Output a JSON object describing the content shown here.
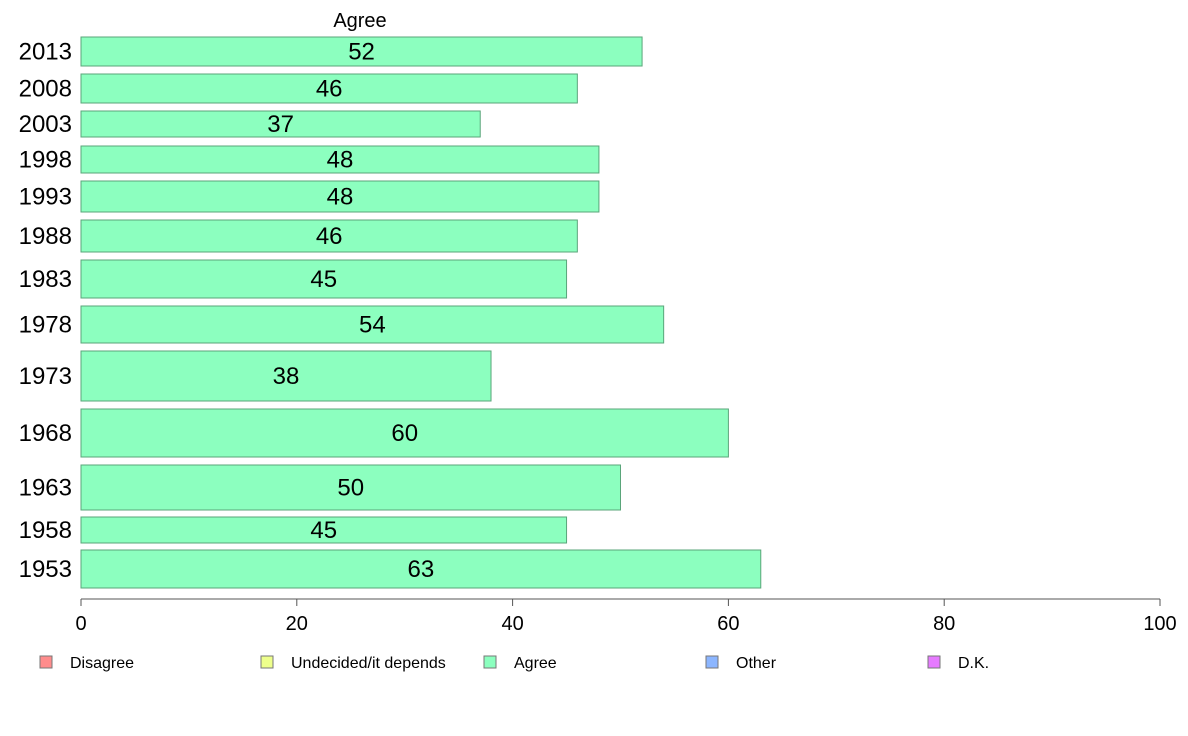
{
  "chart_data": {
    "type": "bar",
    "orientation": "horizontal",
    "title": "Agree",
    "categories": [
      "2013",
      "2008",
      "2003",
      "1998",
      "1993",
      "1988",
      "1983",
      "1978",
      "1973",
      "1968",
      "1963",
      "1958",
      "1953"
    ],
    "series": [
      {
        "name": "Agree",
        "color": "#8cffbf",
        "values": [
          52,
          46,
          37,
          48,
          48,
          46,
          45,
          54,
          38,
          60,
          50,
          45,
          63
        ]
      }
    ],
    "value_labels": [
      "52",
      "46",
      "37",
      "48",
      "48",
      "46",
      "45",
      "54",
      "38",
      "60",
      "50",
      "45",
      "63"
    ],
    "xlim": [
      0,
      100
    ],
    "xticks": [
      0,
      20,
      40,
      60,
      80,
      100
    ],
    "xtick_labels": [
      "0",
      "20",
      "40",
      "60",
      "80",
      "100"
    ],
    "grid": false,
    "legend_position": "bottom",
    "legend": [
      {
        "label": "Disagree",
        "color": "#ff8c8c"
      },
      {
        "label": "Undecided/it depends",
        "color": "#eeff8c"
      },
      {
        "label": "Agree",
        "color": "#8cffbf"
      },
      {
        "label": "Other",
        "color": "#8cb6ff"
      },
      {
        "label": "D.K.",
        "color": "#e67aff"
      }
    ]
  }
}
